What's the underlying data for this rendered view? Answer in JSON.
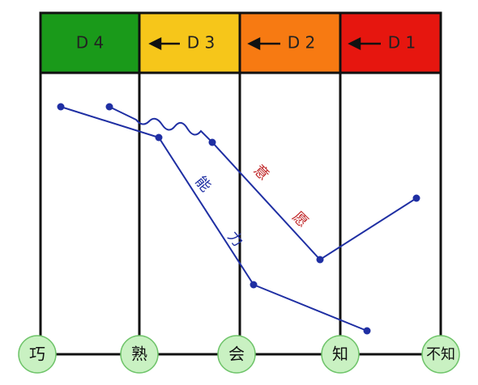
{
  "header": {
    "stages": [
      "D 4",
      "D 3",
      "D 2",
      "D 1"
    ]
  },
  "nodes": [
    "巧",
    "熟",
    "会",
    "知",
    "不知"
  ],
  "curves": {
    "ability": [
      "能",
      "力"
    ],
    "willingness": [
      "意",
      "愿"
    ]
  }
}
